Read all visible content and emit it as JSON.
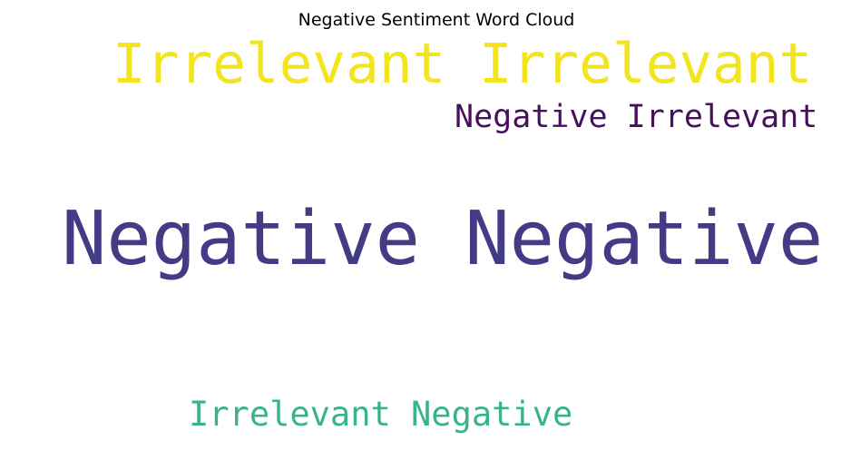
{
  "title": "Negative Sentiment Word Cloud",
  "phrases": [
    {
      "text": "Irrelevant Irrelevant",
      "color": "#f2e51f"
    },
    {
      "text": "Negative Irrelevant",
      "color": "#46105c"
    },
    {
      "text": "Negative Negative",
      "color": "#433b86"
    },
    {
      "text": "Irrelevant Negative",
      "color": "#3ab487"
    }
  ]
}
